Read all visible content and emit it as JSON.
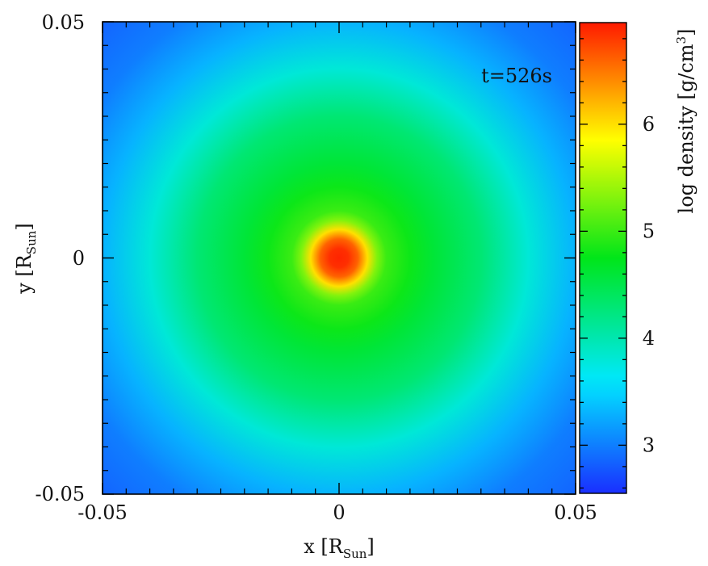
{
  "chart_data": {
    "type": "heatmap",
    "annotation": "t=526s",
    "xlabel": {
      "main": "x [R",
      "sub": "Sun",
      "close": "]"
    },
    "ylabel": {
      "main": "y [R",
      "sub": "Sun",
      "close": "]"
    },
    "xlim": [
      -0.05,
      0.05
    ],
    "ylim": [
      -0.05,
      0.05
    ],
    "x_ticks": [
      "-0.05",
      "0",
      "0.05"
    ],
    "y_ticks": [
      "-0.05",
      "0",
      "0.05"
    ],
    "colorbar": {
      "label": "log density [g/cm",
      "label_sup": "3",
      "label_close": "]",
      "range": [
        2.55,
        6.95
      ],
      "ticks": [
        "3",
        "4",
        "5",
        "6"
      ],
      "colors": [
        "#1a2fff",
        "#00e8ff",
        "#00e619",
        "#ffff00",
        "#ff1a00"
      ]
    },
    "density_profile": {
      "r": [
        0,
        0.002,
        0.004,
        0.006,
        0.008,
        0.01,
        0.015,
        0.02,
        0.03,
        0.04,
        0.05,
        0.06,
        0.071
      ],
      "log_rho": [
        6.9,
        6.85,
        6.6,
        6.0,
        5.3,
        5.0,
        4.8,
        4.6,
        4.3,
        3.8,
        3.3,
        3.0,
        2.85
      ]
    }
  }
}
